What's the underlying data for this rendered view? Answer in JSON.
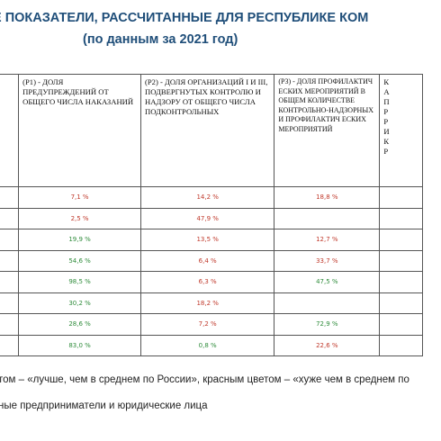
{
  "title": {
    "line1": "Е ПОКАЗАТЕЛИ, РАССЧИТАННЫЕ ДЛЯ РЕСПУБЛИКЕ КОМ",
    "line2": "(по данным за 2021 год)"
  },
  "headers": {
    "p1": "(Р1) - ДОЛЯ ПРЕДУПРЕЖДЕНИЙ ОТ ОБЩЕГО ЧИСЛА НАКАЗАНИЙ",
    "p2": "(Р2) - ДОЛЯ ОРГАНИЗАЦИЙ I И III, ПОДВЕРГНУТЫХ КОНТРОЛЮ И НАДЗОРУ ОТ ОБЩЕГО ЧИСЛА ПОДКОНТРОЛЬНЫХ",
    "p3": "(Р3) - ДОЛЯ ПРОФИЛАКТИЧ ЕСКИХ МЕРОПРИЯТИЙ В ОБЩЕМ КОЛИЧЕСТВЕ КОНТРОЛЬНО-НАДЗОРНЫХ И ПРОФИЛАКТИЧ ЕСКИХ МЕРОПРИЯТИЙ",
    "p4": "К А П Р Р И К Р"
  },
  "rows": [
    {
      "p1": "7,1 %",
      "p1c": "red",
      "p2": "14,2 %",
      "p2c": "red",
      "p3": "18,8 %",
      "p3c": "red"
    },
    {
      "p1": "2,5 %",
      "p1c": "red",
      "p2": "47,9 %",
      "p2c": "red",
      "p3": "",
      "p3c": "red"
    },
    {
      "p1": "19,9 %",
      "p1c": "green",
      "p2": "13,5 %",
      "p2c": "red",
      "p3": "12,7 %",
      "p3c": "red"
    },
    {
      "p1": "54,6 %",
      "p1c": "green",
      "p2": "6,4 %",
      "p2c": "red",
      "p3": "33,7 %",
      "p3c": "red"
    },
    {
      "p1": "98,5 %",
      "p1c": "green",
      "p2": "6,3 %",
      "p2c": "red",
      "p3": "47,5 %",
      "p3c": "green"
    },
    {
      "p1": "30,2 %",
      "p1c": "green",
      "p2": "18,2 %",
      "p2c": "red",
      "p3": "",
      "p3c": "red"
    },
    {
      "p1": "28,6 %",
      "p1c": "green",
      "p2": "7,2 %",
      "p2c": "red",
      "p3": "72,9 %",
      "p3c": "green"
    },
    {
      "p1": "83,0 %",
      "p1c": "green",
      "p2": "0,8 %",
      "p2c": "green",
      "p3": "22,6 %",
      "p3c": "red"
    }
  ],
  "footnotes": {
    "line1": "том – «лучше, чем в среднем по России», красным цветом – «хуже чем в среднем по",
    "line2": "ные предприниматели и юридические лица"
  }
}
